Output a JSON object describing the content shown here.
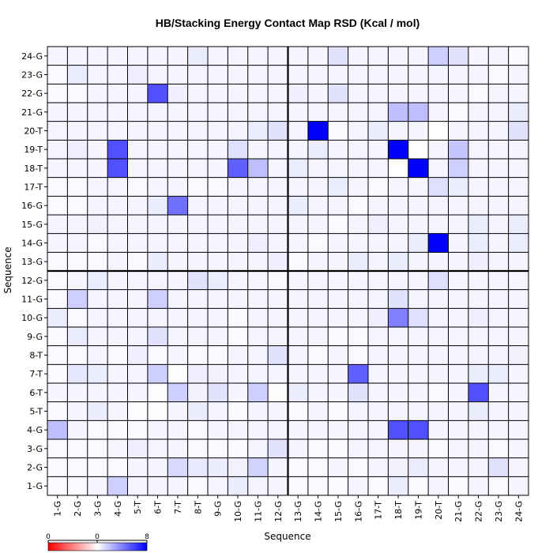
{
  "chart_data": {
    "type": "heatmap",
    "title": "HB/Stacking Energy Contact Map RSD (Kcal / mol)",
    "xlabel": "Sequence",
    "ylabel": "Sequence",
    "labels": [
      "1-G",
      "2-G",
      "3-G",
      "4-G",
      "5-T",
      "6-T",
      "7-T",
      "8-T",
      "9-G",
      "10-G",
      "11-G",
      "12-G",
      "13-G",
      "14-G",
      "15-G",
      "16-G",
      "17-T",
      "18-T",
      "19-T",
      "20-T",
      "21-G",
      "22-G",
      "23-G",
      "24-G"
    ],
    "zlim": [
      0,
      8
    ],
    "colorbar": {
      "ticks": [
        "0",
        "0",
        "8"
      ],
      "colors": [
        "#ff0000",
        "#ffffff",
        "#0000ff"
      ]
    },
    "grid": true,
    "strand_break_after": 12,
    "values": [
      [
        0.2,
        0.2,
        0.3,
        1.5,
        0.3,
        0.3,
        0.3,
        0.2,
        0.3,
        0.6,
        0.3,
        0.3,
        0.2,
        0.2,
        0.2,
        0.3,
        0.2,
        0.6,
        0.2,
        0.3,
        0.2,
        0.3,
        0.2,
        0.3
      ],
      [
        0.2,
        0.2,
        0.2,
        0.2,
        0.3,
        0.3,
        1.2,
        0.7,
        0.6,
        0.4,
        1.4,
        0.3,
        0.2,
        0.2,
        0.3,
        0.2,
        0.3,
        0.4,
        0.6,
        0.3,
        0.3,
        0.3,
        0.9,
        0.3
      ],
      [
        0.2,
        0.2,
        0.2,
        0.3,
        0.5,
        0.3,
        0.3,
        0.2,
        0.2,
        0.2,
        0.3,
        0.9,
        0.3,
        0.2,
        0.2,
        0.3,
        0.3,
        0.3,
        0.3,
        0.2,
        0.3,
        0.3,
        0.2,
        0.3
      ],
      [
        2.0,
        0.3,
        0.2,
        0.2,
        0.2,
        0.3,
        0.3,
        0.2,
        0.3,
        0.3,
        0.3,
        0.3,
        0.3,
        0.3,
        0.3,
        0.3,
        0.3,
        5.5,
        5.5,
        0.3,
        0.3,
        0.3,
        0.3,
        0.3
      ],
      [
        0.2,
        0.3,
        0.6,
        0.3,
        0.1,
        0.1,
        0.3,
        0.6,
        0.3,
        0.2,
        0.3,
        0.3,
        0.2,
        0.3,
        0.2,
        0.3,
        0.3,
        0.3,
        0.3,
        0.3,
        0.3,
        0.6,
        0.3,
        0.3
      ],
      [
        0.3,
        0.3,
        0.3,
        0.3,
        0.3,
        0.1,
        1.5,
        0.4,
        0.9,
        0.3,
        1.5,
        0.1,
        0.6,
        0.3,
        0.3,
        0.9,
        0.3,
        0.3,
        0.3,
        0.2,
        0.3,
        5.5,
        0.3,
        0.3
      ],
      [
        0.2,
        0.8,
        0.6,
        0.3,
        0.3,
        1.5,
        0.1,
        0.5,
        0.4,
        0.3,
        0.3,
        0.3,
        0.3,
        0.3,
        0.3,
        5.0,
        0.3,
        0.3,
        0.3,
        0.3,
        0.3,
        0.6,
        0.6,
        0.3
      ],
      [
        0.2,
        0.2,
        0.3,
        0.2,
        0.5,
        0.2,
        0.3,
        0.2,
        0.2,
        0.3,
        0.3,
        0.9,
        0.3,
        0.2,
        0.3,
        0.2,
        0.3,
        0.3,
        0.3,
        0.3,
        0.3,
        0.3,
        0.3,
        0.4
      ],
      [
        0.2,
        0.6,
        0.3,
        0.3,
        0.3,
        0.9,
        0.3,
        0.3,
        0.3,
        0.2,
        0.3,
        0.3,
        0.3,
        0.3,
        0.2,
        0.2,
        0.3,
        0.3,
        0.3,
        0.3,
        0.3,
        0.3,
        0.3,
        0.3
      ],
      [
        0.6,
        0.2,
        0.3,
        0.3,
        0.3,
        0.3,
        0.3,
        0.3,
        0.3,
        0.2,
        0.3,
        0.3,
        0.3,
        0.3,
        0.3,
        0.3,
        0.5,
        4.0,
        1.0,
        0.3,
        0.3,
        0.5,
        0.3,
        0.3
      ],
      [
        0.2,
        1.5,
        0.3,
        0.3,
        0.3,
        1.5,
        0.3,
        0.3,
        0.3,
        0.3,
        0.3,
        0.3,
        0.3,
        0.3,
        0.3,
        0.3,
        0.3,
        0.9,
        0.3,
        0.3,
        0.3,
        0.3,
        0.3,
        0.3
      ],
      [
        0.2,
        0.3,
        0.6,
        0.3,
        0.3,
        0.3,
        0.3,
        0.9,
        0.6,
        0.3,
        0.3,
        0.2,
        0.3,
        0.3,
        0.3,
        0.3,
        0.3,
        0.3,
        0.3,
        1.0,
        0.3,
        0.3,
        0.3,
        0.3
      ],
      [
        0.2,
        0.2,
        0.2,
        0.3,
        0.2,
        0.6,
        0.3,
        0.3,
        0.3,
        0.3,
        0.3,
        0.5,
        0.2,
        0.3,
        0.3,
        0.6,
        0.3,
        0.6,
        0.3,
        0.3,
        0.3,
        0.5,
        0.3,
        0.3
      ],
      [
        0.3,
        0.3,
        0.2,
        0.3,
        0.3,
        0.3,
        0.3,
        0.3,
        0.3,
        0.3,
        0.5,
        0.3,
        0.3,
        0.2,
        0.3,
        0.3,
        0.3,
        0.3,
        0.6,
        8.0,
        0.3,
        0.6,
        0.3,
        0.6
      ],
      [
        0.3,
        0.3,
        0.4,
        0.3,
        0.3,
        0.3,
        0.3,
        0.3,
        0.3,
        0.3,
        0.3,
        0.3,
        0.3,
        0.3,
        0.2,
        0.3,
        0.5,
        0.3,
        0.3,
        0.3,
        0.3,
        0.6,
        0.3,
        0.6
      ],
      [
        0.2,
        0.2,
        0.3,
        0.3,
        0.3,
        0.6,
        4.5,
        0.3,
        0.3,
        0.3,
        0.3,
        0.3,
        0.6,
        0.3,
        0.3,
        0.2,
        0.3,
        0.3,
        0.3,
        0.3,
        0.3,
        0.3,
        0.3,
        0.3
      ],
      [
        0.2,
        0.2,
        0.3,
        0.3,
        0.2,
        0.3,
        0.3,
        0.2,
        0.2,
        0.3,
        0.3,
        0.3,
        0.3,
        0.3,
        0.6,
        0.3,
        0.2,
        0.3,
        0.3,
        1.0,
        0.6,
        0.3,
        0.3,
        0.3
      ],
      [
        0.3,
        0.3,
        0.3,
        5.5,
        0.3,
        0.3,
        0.3,
        0.3,
        0.3,
        5.0,
        2.0,
        0.3,
        0.6,
        0.3,
        0.3,
        0.3,
        0.3,
        0.0,
        8.0,
        0.3,
        1.5,
        0.3,
        0.3,
        0.3
      ],
      [
        0.3,
        0.5,
        0.3,
        5.5,
        0.3,
        0.3,
        0.3,
        0.3,
        0.3,
        1.0,
        0.3,
        0.3,
        0.3,
        0.6,
        0.3,
        0.3,
        0.3,
        8.0,
        0.0,
        0.3,
        1.8,
        0.3,
        0.3,
        0.3
      ],
      [
        0.3,
        0.3,
        0.3,
        0.3,
        0.3,
        0.3,
        0.3,
        0.3,
        0.3,
        0.3,
        0.6,
        0.9,
        0.3,
        8.0,
        0.2,
        0.3,
        0.6,
        0.3,
        0.3,
        0.0,
        0.3,
        0.3,
        0.3,
        0.9
      ],
      [
        0.3,
        0.3,
        0.3,
        0.3,
        0.3,
        0.3,
        0.3,
        0.3,
        0.3,
        0.3,
        0.3,
        0.3,
        0.3,
        0.3,
        0.3,
        0.3,
        0.3,
        2.0,
        2.0,
        0.3,
        0.2,
        0.3,
        0.3,
        0.6
      ],
      [
        0.2,
        0.2,
        0.3,
        0.3,
        0.3,
        5.5,
        0.5,
        0.3,
        0.3,
        0.3,
        0.3,
        0.3,
        0.5,
        0.3,
        0.9,
        0.3,
        0.3,
        0.3,
        0.3,
        0.3,
        0.3,
        0.2,
        0.3,
        0.3
      ],
      [
        0.2,
        0.6,
        0.3,
        0.3,
        0.5,
        0.3,
        0.3,
        0.3,
        0.3,
        0.3,
        0.3,
        0.3,
        0.3,
        0.3,
        0.3,
        0.3,
        0.3,
        0.3,
        0.3,
        0.3,
        0.3,
        0.3,
        0.2,
        0.3
      ],
      [
        0.3,
        0.3,
        0.3,
        0.3,
        0.3,
        0.3,
        0.3,
        0.6,
        0.3,
        0.3,
        0.3,
        0.3,
        0.3,
        0.3,
        0.9,
        0.3,
        0.3,
        0.3,
        0.3,
        1.5,
        0.9,
        0.3,
        0.3,
        0.2
      ]
    ]
  }
}
